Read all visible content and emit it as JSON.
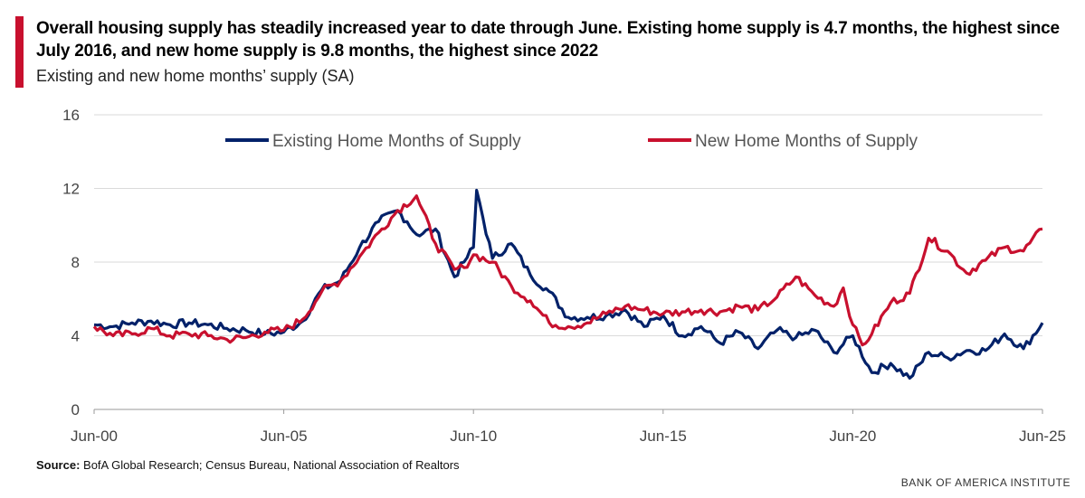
{
  "header": {
    "title": "Overall housing supply has steadily increased year to date through June. Existing home supply is 4.7 months, the highest since July 2016, and new home supply is 9.8 months, the highest since 2022",
    "subtitle": "Existing and new home months’ supply (SA)"
  },
  "footer": {
    "source_label": "Source:",
    "source_text": " BofA Global Research; Census Bureau, National Association of Realtors",
    "brand": "BANK OF AMERICA INSTITUTE"
  },
  "chart_data": {
    "type": "line",
    "x_start": "Jun-00",
    "x_end": "Jun-25",
    "xticks": [
      "Jun-00",
      "Jun-05",
      "Jun-10",
      "Jun-15",
      "Jun-20",
      "Jun-25"
    ],
    "yticks": [
      0,
      4,
      8,
      12,
      16
    ],
    "ylim": [
      0,
      16
    ],
    "grid": true,
    "legend": "top",
    "series": [
      {
        "name": "Existing Home Months of Supply",
        "color": "#012169",
        "points": [
          [
            "2000-06",
            4.6
          ],
          [
            "2000-12",
            4.5
          ],
          [
            "2001-06",
            4.7
          ],
          [
            "2001-12",
            4.8
          ],
          [
            "2002-06",
            4.6
          ],
          [
            "2002-12",
            4.7
          ],
          [
            "2003-06",
            4.6
          ],
          [
            "2003-12",
            4.4
          ],
          [
            "2004-06",
            4.3
          ],
          [
            "2004-12",
            4.1
          ],
          [
            "2005-06",
            4.2
          ],
          [
            "2005-12",
            4.8
          ],
          [
            "2006-06",
            6.5
          ],
          [
            "2006-12",
            7.0
          ],
          [
            "2007-06",
            8.8
          ],
          [
            "2007-12",
            10.2
          ],
          [
            "2008-06",
            10.8
          ],
          [
            "2008-09",
            10.2
          ],
          [
            "2008-12",
            9.5
          ],
          [
            "2009-06",
            9.8
          ],
          [
            "2009-12",
            7.2
          ],
          [
            "2010-03",
            8.0
          ],
          [
            "2010-06",
            8.8
          ],
          [
            "2010-07",
            11.9
          ],
          [
            "2010-12",
            8.2
          ],
          [
            "2011-06",
            9.0
          ],
          [
            "2011-12",
            7.3
          ],
          [
            "2012-06",
            6.4
          ],
          [
            "2012-12",
            5.0
          ],
          [
            "2013-06",
            5.0
          ],
          [
            "2013-12",
            5.1
          ],
          [
            "2014-06",
            5.4
          ],
          [
            "2014-12",
            4.5
          ],
          [
            "2015-06",
            5.1
          ],
          [
            "2015-12",
            4.0
          ],
          [
            "2016-06",
            4.5
          ],
          [
            "2016-12",
            3.6
          ],
          [
            "2017-06",
            4.2
          ],
          [
            "2017-12",
            3.3
          ],
          [
            "2018-06",
            4.3
          ],
          [
            "2018-12",
            3.9
          ],
          [
            "2019-06",
            4.3
          ],
          [
            "2019-12",
            3.1
          ],
          [
            "2020-06",
            4.0
          ],
          [
            "2020-12",
            2.0
          ],
          [
            "2021-06",
            2.5
          ],
          [
            "2021-12",
            1.7
          ],
          [
            "2022-06",
            3.1
          ],
          [
            "2022-12",
            2.8
          ],
          [
            "2023-06",
            3.2
          ],
          [
            "2023-12",
            3.2
          ],
          [
            "2024-06",
            4.1
          ],
          [
            "2024-12",
            3.3
          ],
          [
            "2025-06",
            4.7
          ]
        ]
      },
      {
        "name": "New Home Months of Supply",
        "color": "#c8102e",
        "points": [
          [
            "2000-06",
            4.5
          ],
          [
            "2000-12",
            4.0
          ],
          [
            "2001-06",
            4.1
          ],
          [
            "2001-12",
            4.4
          ],
          [
            "2002-06",
            4.0
          ],
          [
            "2002-12",
            4.1
          ],
          [
            "2003-06",
            4.0
          ],
          [
            "2003-12",
            3.8
          ],
          [
            "2004-06",
            3.9
          ],
          [
            "2004-12",
            4.2
          ],
          [
            "2005-06",
            4.3
          ],
          [
            "2005-12",
            4.9
          ],
          [
            "2006-06",
            6.4
          ],
          [
            "2006-12",
            7.0
          ],
          [
            "2007-06",
            8.3
          ],
          [
            "2007-12",
            9.6
          ],
          [
            "2008-06",
            10.8
          ],
          [
            "2008-12",
            11.6
          ],
          [
            "2009-06",
            9.0
          ],
          [
            "2009-12",
            7.6
          ],
          [
            "2010-03",
            7.7
          ],
          [
            "2010-06",
            8.4
          ],
          [
            "2010-12",
            8.0
          ],
          [
            "2011-06",
            6.7
          ],
          [
            "2011-12",
            5.9
          ],
          [
            "2012-06",
            4.7
          ],
          [
            "2012-12",
            4.5
          ],
          [
            "2013-06",
            4.7
          ],
          [
            "2013-12",
            5.2
          ],
          [
            "2014-06",
            5.6
          ],
          [
            "2014-12",
            5.4
          ],
          [
            "2015-06",
            5.2
          ],
          [
            "2015-12",
            5.3
          ],
          [
            "2016-06",
            5.4
          ],
          [
            "2016-12",
            5.3
          ],
          [
            "2017-06",
            5.6
          ],
          [
            "2017-12",
            5.4
          ],
          [
            "2018-06",
            6.1
          ],
          [
            "2018-12",
            7.2
          ],
          [
            "2019-06",
            6.2
          ],
          [
            "2019-12",
            5.6
          ],
          [
            "2020-03",
            6.6
          ],
          [
            "2020-06",
            4.6
          ],
          [
            "2020-09",
            3.5
          ],
          [
            "2020-12",
            4.1
          ],
          [
            "2021-06",
            5.8
          ],
          [
            "2021-12",
            6.3
          ],
          [
            "2022-06",
            9.3
          ],
          [
            "2022-12",
            8.6
          ],
          [
            "2023-06",
            7.4
          ],
          [
            "2023-12",
            8.1
          ],
          [
            "2024-06",
            8.8
          ],
          [
            "2024-12",
            8.6
          ],
          [
            "2025-06",
            9.8
          ]
        ]
      }
    ]
  }
}
